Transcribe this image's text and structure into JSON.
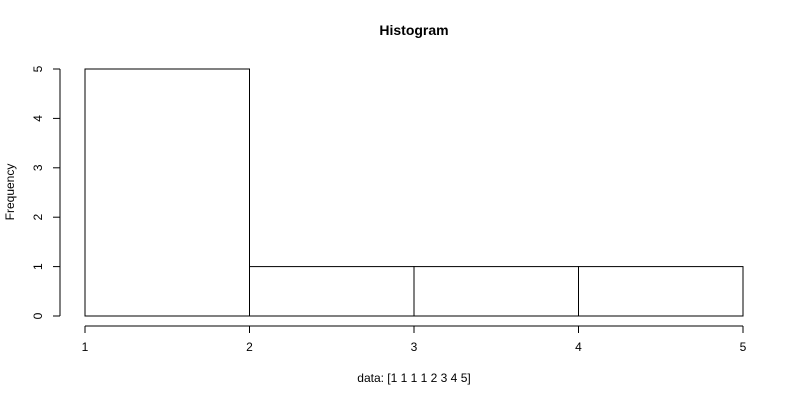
{
  "chart_data": {
    "type": "bar",
    "title": "Histogram",
    "xlabel": "data: [1 1 1 1 2 3 4 5]",
    "ylabel": "Frequency",
    "bins": [
      {
        "start": 1,
        "end": 2,
        "value": 5
      },
      {
        "start": 2,
        "end": 3,
        "value": 1
      },
      {
        "start": 3,
        "end": 4,
        "value": 1
      },
      {
        "start": 4,
        "end": 5,
        "value": 1
      }
    ],
    "xlim": [
      1,
      5
    ],
    "ylim": [
      0,
      5
    ],
    "xticks": [
      1,
      2,
      3,
      4,
      5
    ],
    "yticks": [
      0,
      1,
      2,
      3,
      4,
      5
    ],
    "grid": false,
    "legend": "none",
    "colors": {
      "bar_fill": "#ffffff",
      "bar_stroke": "#000000"
    }
  }
}
